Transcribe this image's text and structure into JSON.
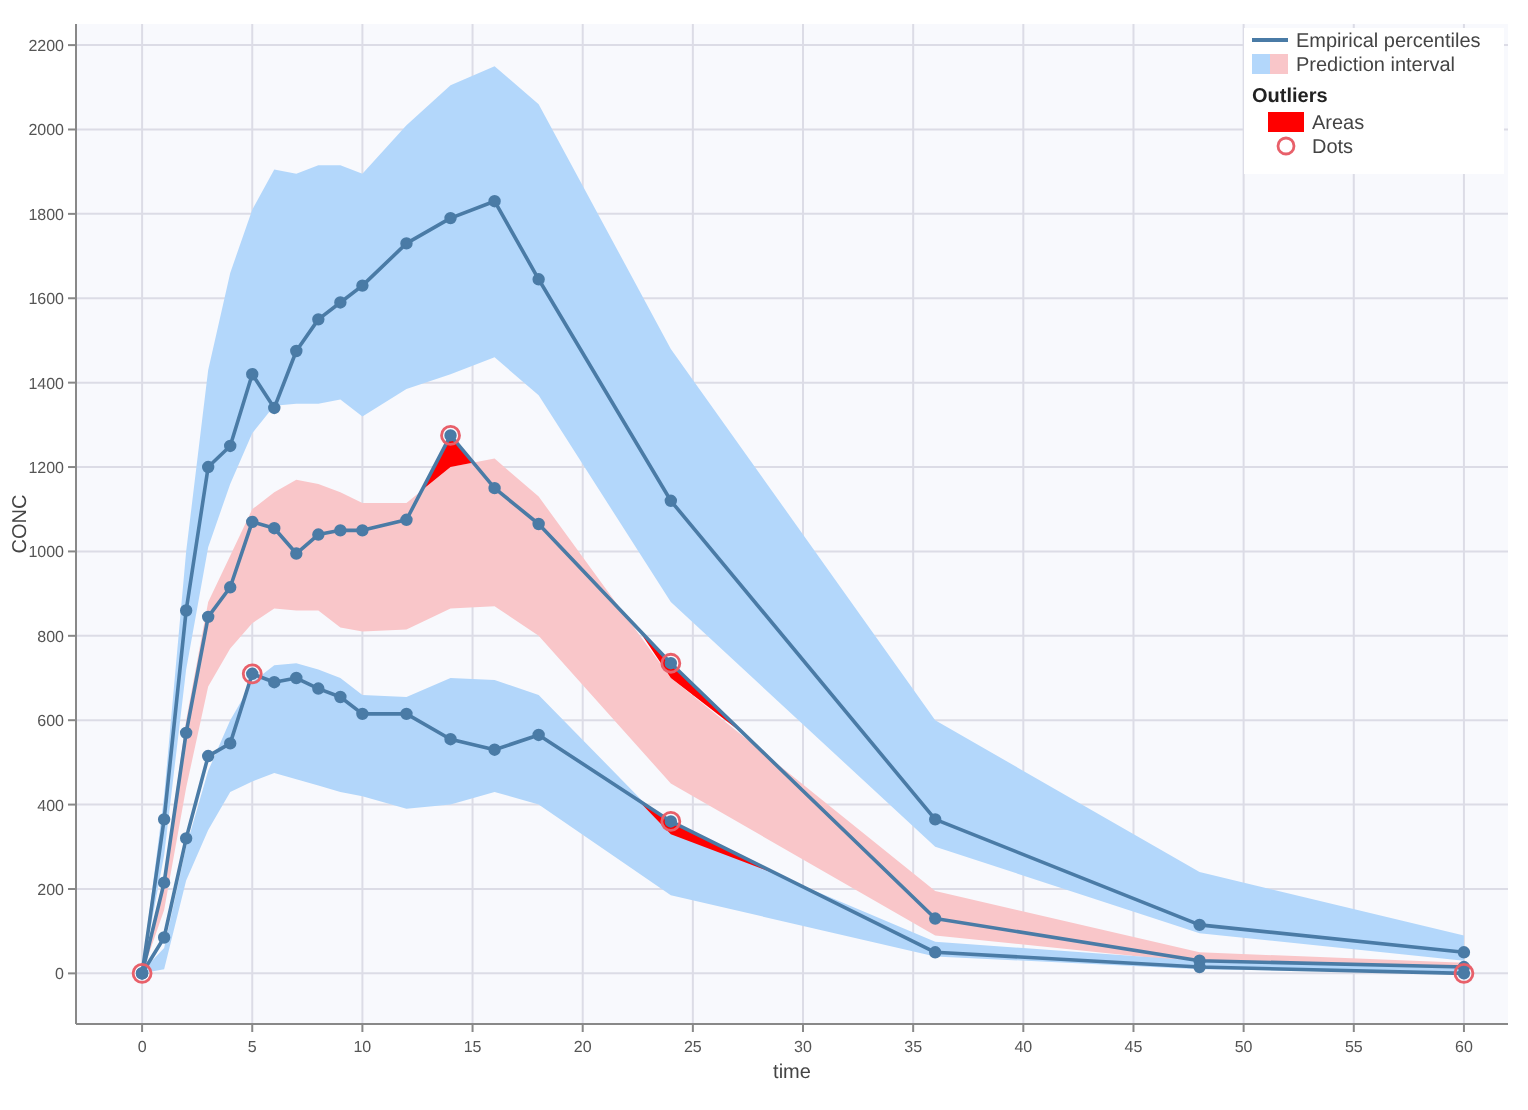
{
  "chart_data": {
    "type": "line",
    "xlabel": "time",
    "ylabel": "CONC",
    "xlim": [
      -3,
      62
    ],
    "ylim": [
      -120,
      2250
    ],
    "xticks": [
      0,
      5,
      10,
      15,
      20,
      25,
      30,
      35,
      40,
      45,
      50,
      55,
      60
    ],
    "yticks": [
      0,
      200,
      400,
      600,
      800,
      1000,
      1200,
      1400,
      1600,
      1800,
      2000,
      2200
    ],
    "grid": true,
    "legend": "top right",
    "legend_title": "Outliers",
    "x": [
      0,
      1,
      2,
      3,
      4,
      5,
      6,
      7,
      8,
      9,
      10,
      12,
      14,
      16,
      18,
      24,
      36,
      48,
      60
    ],
    "series": [
      {
        "type": "line",
        "name": "Prediction interval",
        "color": "#b3d7fb",
        "values": [
          null,
          null,
          null,
          null,
          null,
          null,
          null,
          null,
          null,
          null,
          null,
          null,
          null,
          null,
          null,
          null,
          null,
          null,
          null
        ],
        "lower": [
          0,
          280,
          720,
          1010,
          1160,
          1280,
          1345,
          1350,
          1350,
          1360,
          1320,
          1385,
          1420,
          1460,
          1370,
          880,
          300,
          95,
          30
        ],
        "upper": [
          10,
          420,
          1000,
          1430,
          1660,
          1810,
          1905,
          1895,
          1915,
          1915,
          1895,
          2010,
          2105,
          2150,
          2060,
          1480,
          600,
          240,
          90
        ]
      },
      {
        "type": "line",
        "color": "#f9c6c9",
        "values": [
          null,
          null,
          null,
          null,
          null,
          null,
          null,
          null,
          null,
          null,
          null,
          null,
          null,
          null,
          null,
          null,
          null,
          null,
          null
        ],
        "lower": [
          0,
          150,
          440,
          680,
          770,
          830,
          865,
          860,
          860,
          820,
          810,
          815,
          865,
          870,
          800,
          450,
          90,
          25,
          10
        ],
        "upper": [
          5,
          230,
          600,
          880,
          990,
          1100,
          1140,
          1170,
          1160,
          1140,
          1115,
          1115,
          1200,
          1220,
          1130,
          700,
          195,
          50,
          25
        ]
      },
      {
        "type": "line",
        "color": "#b2d6fa",
        "values": [
          null,
          null,
          null,
          null,
          null,
          null,
          null,
          null,
          null,
          null,
          null,
          null,
          null,
          null,
          null,
          null,
          null,
          null,
          null
        ],
        "lower": [
          0,
          10,
          220,
          340,
          430,
          455,
          475,
          460,
          445,
          430,
          420,
          390,
          400,
          430,
          400,
          185,
          40,
          10,
          0
        ],
        "upper": [
          5,
          60,
          300,
          480,
          600,
          690,
          730,
          735,
          720,
          700,
          660,
          655,
          700,
          695,
          660,
          340,
          75,
          30,
          15
        ]
      },
      {
        "type": "line",
        "name": "Areas",
        "color": "#ff0000",
        "x": [
          12.7,
          14,
          15
        ],
        "values": [
          null,
          null,
          null
        ],
        "lower": [
          1145,
          1200,
          1210
        ],
        "upper": [
          1145,
          1275,
          1210
        ]
      },
      {
        "type": "line",
        "color": "#ff0000",
        "x": [
          22.5,
          24,
          27.5
        ],
        "values": [
          null,
          null,
          null
        ],
        "lower": [
          817,
          700,
          559
        ],
        "upper": [
          817,
          735,
          559
        ]
      },
      {
        "type": "line",
        "color": "#fe0101",
        "x": [
          22.5,
          24,
          29
        ],
        "values": [
          null,
          null,
          null
        ],
        "lower": [
          411,
          330,
          231
        ],
        "upper": [
          411,
          360,
          231
        ]
      },
      {
        "type": "line",
        "name": "Empirical percentiles",
        "color": "#4a7ba6",
        "marker": "circle",
        "values": [
          0,
          365,
          860,
          1200,
          1250,
          1420,
          1340,
          1475,
          1550,
          1590,
          1630,
          1730,
          1790,
          1830,
          1645,
          1120,
          365,
          115,
          50
        ]
      },
      {
        "type": "line",
        "color": "#4a7ba6",
        "marker": "circle",
        "values": [
          0,
          215,
          570,
          845,
          915,
          1070,
          1055,
          995,
          1040,
          1050,
          1050,
          1075,
          1275,
          1150,
          1065,
          735,
          130,
          30,
          15
        ]
      },
      {
        "type": "line",
        "color": "#4a7ba6",
        "marker": "circle",
        "values": [
          0,
          85,
          320,
          515,
          545,
          710,
          690,
          700,
          675,
          655,
          615,
          615,
          555,
          530,
          565,
          360,
          50,
          15,
          0
        ]
      },
      {
        "type": "scatter",
        "name": "Dots",
        "color": "#e8606a",
        "marker": "circle",
        "x": [
          0,
          5,
          14,
          24,
          24,
          60
        ],
        "values": [
          0,
          710,
          1275,
          735,
          360,
          0
        ]
      }
    ]
  }
}
